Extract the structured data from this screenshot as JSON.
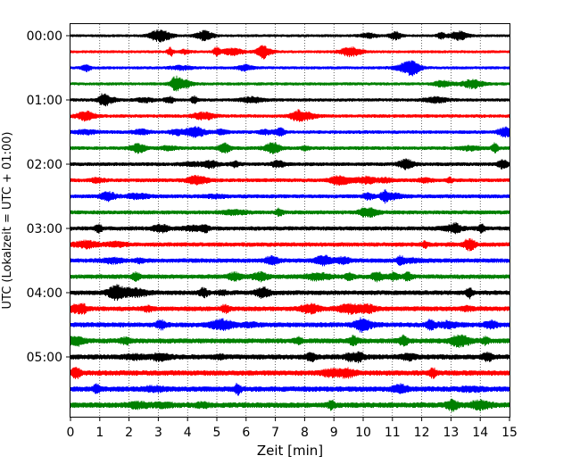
{
  "chart_data": {
    "type": "line",
    "title": "",
    "xlabel": "Zeit  [min]",
    "ylabel": "UTC (Lokalzeit = UTC + 01:00)",
    "xlim": [
      0,
      15
    ],
    "x_ticks": [
      "0",
      "1",
      "2",
      "3",
      "4",
      "5",
      "6",
      "7",
      "8",
      "9",
      "10",
      "11",
      "12",
      "13",
      "14",
      "15"
    ],
    "y_ticks": [
      "00:00",
      "01:00",
      "02:00",
      "03:00",
      "04:00",
      "05:00"
    ],
    "grid": "vertical dotted",
    "trace_interval_min": 15,
    "trace_start": "00:00",
    "trace_count": 24,
    "trace_colors": [
      "#000000",
      "#ff0000",
      "#0000ff",
      "#008000"
    ]
  }
}
